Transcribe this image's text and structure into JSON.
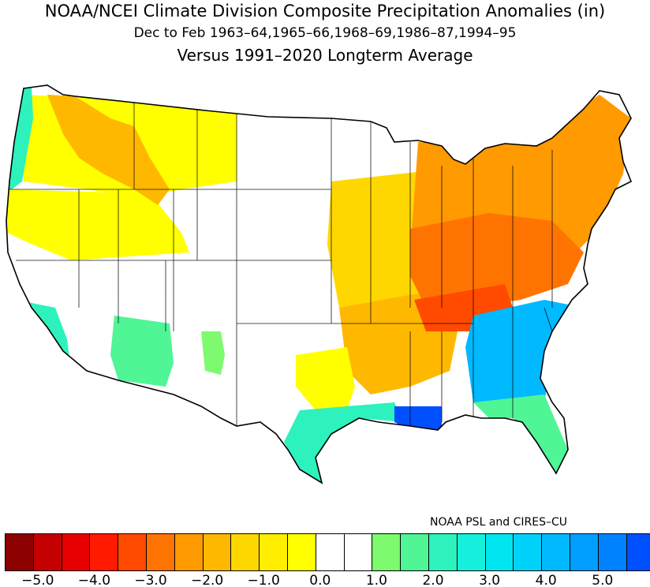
{
  "title": "NOAA/NCEI Climate Division Composite Precipitation Anomalies (in)",
  "subtitle": "Dec to Feb  1963–64,1965–66,1968–69,1986–87,1994–95",
  "subtitle2": "Versus 1991–2020 Longterm Average",
  "credit": "NOAA PSL and CIRES–CU",
  "colorbar": {
    "colors": [
      "#8c0000",
      "#c40000",
      "#e60000",
      "#ff1a00",
      "#ff4a00",
      "#ff7400",
      "#ff9a00",
      "#ffb800",
      "#ffd700",
      "#ffee00",
      "#ffff00",
      "#ffffff",
      "#ffffff",
      "#7dfa6e",
      "#50f596",
      "#2df2bd",
      "#14f0dc",
      "#00e6f0",
      "#00d2fa",
      "#00b9ff",
      "#009eff",
      "#0082ff",
      "#0050ff"
    ],
    "ticks": [
      "−5.0",
      "−4.0",
      "−3.0",
      "−2.0",
      "−1.0",
      "0.0",
      "1.0",
      "2.0",
      "3.0",
      "4.0",
      "5.0"
    ]
  },
  "regions": [
    {
      "name": "pacific-northwest-coast",
      "color": "#2df2bd"
    },
    {
      "name": "northern-rockies-plains",
      "color": "#ffff00"
    },
    {
      "name": "idaho-montana",
      "color": "#ffb800"
    },
    {
      "name": "northern-great-basin",
      "color": "#ffff00"
    },
    {
      "name": "southern-california",
      "color": "#2df2bd"
    },
    {
      "name": "arizona",
      "color": "#50f596"
    },
    {
      "name": "new-mexico",
      "color": "#7dfa6e"
    },
    {
      "name": "upper-midwest",
      "color": "#ffd700"
    },
    {
      "name": "ohio-valley",
      "color": "#ff7400"
    },
    {
      "name": "tennessee-valley",
      "color": "#ff4a00"
    },
    {
      "name": "northeast",
      "color": "#ff9a00"
    },
    {
      "name": "mid-south",
      "color": "#ffb800"
    },
    {
      "name": "north-texas",
      "color": "#ffff00"
    },
    {
      "name": "gulf-coast-texas",
      "color": "#2df2bd"
    },
    {
      "name": "louisiana-coast",
      "color": "#0050ff"
    },
    {
      "name": "georgia-carolinas",
      "color": "#00b9ff"
    },
    {
      "name": "florida",
      "color": "#50f596"
    }
  ]
}
